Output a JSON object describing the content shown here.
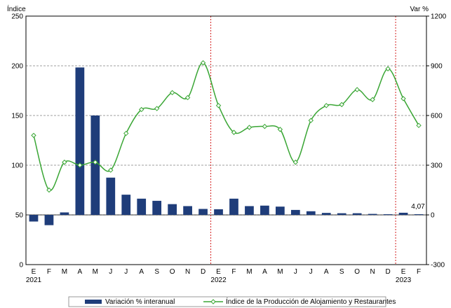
{
  "chart_data": {
    "type": "bar+line",
    "left_axis": {
      "label": "Índice",
      "min": 0,
      "max": 250,
      "ticks": [
        "0",
        "50",
        "100",
        "150",
        "200",
        "250"
      ]
    },
    "right_axis": {
      "label": "Var %",
      "min": -300,
      "max": 1200,
      "ticks": [
        "-300",
        "0",
        "300",
        "600",
        "900",
        "1200"
      ]
    },
    "categories": [
      "E",
      "F",
      "M",
      "A",
      "M",
      "J",
      "J",
      "A",
      "S",
      "O",
      "N",
      "D",
      "E",
      "F",
      "M",
      "A",
      "M",
      "J",
      "J",
      "A",
      "S",
      "O",
      "N",
      "D",
      "E",
      "F"
    ],
    "years": [
      {
        "label": "2021",
        "index": 0
      },
      {
        "label": "2022",
        "index": 12
      },
      {
        "label": "2023",
        "index": 24
      }
    ],
    "year_separators_after_index": [
      11,
      23
    ],
    "series": [
      {
        "name": "Variación % interanual",
        "type": "bar",
        "axis": "right",
        "color": "#1f3d7a",
        "values": [
          -40,
          -62,
          15,
          890,
          600,
          225,
          122,
          98,
          85,
          65,
          53,
          36,
          34,
          98,
          53,
          56,
          50,
          30,
          22,
          12,
          10,
          10,
          6,
          4,
          13,
          4.07
        ]
      },
      {
        "name": "Índice de la Producción de Alojamiento y Restaurantes",
        "type": "line",
        "axis": "left",
        "color": "#3aa635",
        "values": [
          130,
          75,
          103,
          100,
          103,
          95,
          132,
          156,
          157,
          173,
          168,
          203,
          160,
          133,
          138,
          139,
          136,
          103,
          145,
          160,
          161,
          176,
          166,
          197,
          167,
          140
        ]
      }
    ],
    "data_labels": [
      {
        "series": 0,
        "index": 25,
        "text": "4,07"
      }
    ],
    "grid": "horizontal dashed",
    "legend_position": "bottom"
  }
}
